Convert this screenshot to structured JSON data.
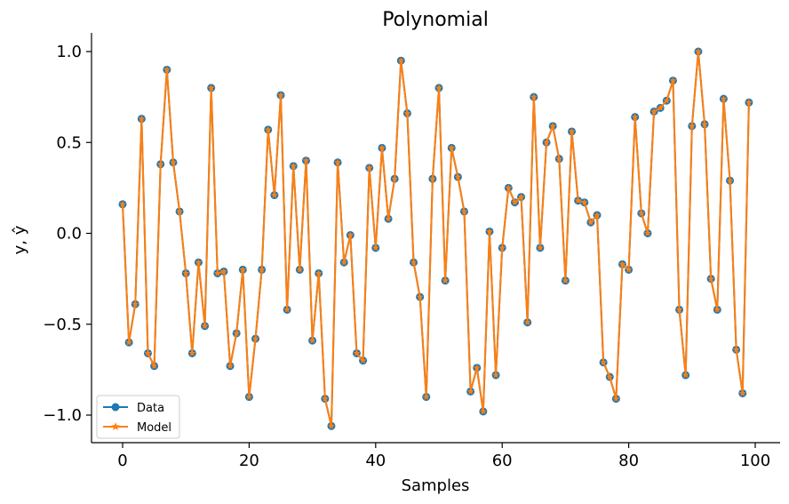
{
  "chart_data": {
    "type": "line",
    "title": "Polynomial",
    "xlabel": "Samples",
    "ylabel": "y, ŷ",
    "xlim": [
      -5,
      104
    ],
    "ylim": [
      -1.15,
      1.1
    ],
    "xticks": [
      0,
      20,
      40,
      60,
      80,
      100
    ],
    "xtick_labels": [
      "0",
      "20",
      "40",
      "60",
      "80",
      "100"
    ],
    "yticks": [
      1.0,
      0.5,
      0.0,
      -0.5,
      -1.0
    ],
    "ytick_labels": [
      "1.0",
      "0.5",
      "0.0",
      "−0.5",
      "−1.0"
    ],
    "grid": false,
    "legend_position": "lower-left",
    "x": [
      0,
      1,
      2,
      3,
      4,
      5,
      6,
      7,
      8,
      9,
      10,
      11,
      12,
      13,
      14,
      15,
      16,
      17,
      18,
      19,
      20,
      21,
      22,
      23,
      24,
      25,
      26,
      27,
      28,
      29,
      30,
      31,
      32,
      33,
      34,
      35,
      36,
      37,
      38,
      39,
      40,
      41,
      42,
      43,
      44,
      45,
      46,
      47,
      48,
      49,
      50,
      51,
      52,
      53,
      54,
      55,
      56,
      57,
      58,
      59,
      60,
      61,
      62,
      63,
      64,
      65,
      66,
      67,
      68,
      69,
      70,
      71,
      72,
      73,
      74,
      75,
      76,
      77,
      78,
      79,
      80,
      81,
      82,
      83,
      84,
      85,
      86,
      87,
      88,
      89,
      90,
      91,
      92,
      93,
      94,
      95,
      96,
      97,
      98,
      99
    ],
    "series": [
      {
        "name": "Data",
        "color": "#1f77b4",
        "marker": "circle",
        "values": [
          0.16,
          -0.6,
          -0.39,
          0.63,
          -0.66,
          -0.73,
          0.38,
          0.9,
          0.39,
          0.12,
          -0.22,
          -0.66,
          -0.16,
          -0.51,
          0.8,
          -0.22,
          -0.21,
          -0.73,
          -0.55,
          -0.2,
          -0.9,
          -0.58,
          -0.2,
          0.57,
          0.21,
          0.76,
          -0.42,
          0.37,
          -0.2,
          0.4,
          -0.59,
          -0.22,
          -0.91,
          -1.06,
          0.39,
          -0.16,
          -0.01,
          -0.66,
          -0.7,
          0.36,
          -0.08,
          0.47,
          0.08,
          0.3,
          0.95,
          0.66,
          -0.16,
          -0.35,
          -0.9,
          0.3,
          0.8,
          -0.26,
          0.47,
          0.31,
          0.12,
          -0.87,
          -0.74,
          -0.98,
          0.01,
          -0.78,
          -0.08,
          0.25,
          0.17,
          0.2,
          -0.49,
          0.75,
          -0.08,
          0.5,
          0.59,
          0.41,
          -0.26,
          0.56,
          0.18,
          0.17,
          0.06,
          0.1,
          -0.71,
          -0.79,
          -0.91,
          -0.17,
          -0.2,
          0.64,
          0.11,
          0.0,
          0.67,
          0.69,
          0.73,
          0.84,
          -0.42,
          -0.78,
          0.59,
          1.0,
          0.6,
          -0.25,
          -0.42,
          0.74,
          0.29,
          -0.64,
          -0.88,
          0.72
        ]
      },
      {
        "name": "Model",
        "color": "#ff7f0e",
        "marker": "star",
        "values": [
          0.16,
          -0.6,
          -0.39,
          0.63,
          -0.66,
          -0.73,
          0.38,
          0.9,
          0.39,
          0.12,
          -0.22,
          -0.66,
          -0.16,
          -0.51,
          0.8,
          -0.22,
          -0.21,
          -0.73,
          -0.55,
          -0.2,
          -0.9,
          -0.58,
          -0.2,
          0.57,
          0.21,
          0.76,
          -0.42,
          0.37,
          -0.2,
          0.4,
          -0.59,
          -0.22,
          -0.91,
          -1.06,
          0.39,
          -0.16,
          -0.01,
          -0.66,
          -0.7,
          0.36,
          -0.08,
          0.47,
          0.08,
          0.3,
          0.95,
          0.66,
          -0.16,
          -0.35,
          -0.9,
          0.3,
          0.8,
          -0.26,
          0.47,
          0.31,
          0.12,
          -0.87,
          -0.74,
          -0.98,
          0.01,
          -0.78,
          -0.08,
          0.25,
          0.17,
          0.2,
          -0.49,
          0.75,
          -0.08,
          0.5,
          0.59,
          0.41,
          -0.26,
          0.56,
          0.18,
          0.17,
          0.06,
          0.1,
          -0.71,
          -0.79,
          -0.91,
          -0.17,
          -0.2,
          0.64,
          0.11,
          0.0,
          0.67,
          0.69,
          0.73,
          0.84,
          -0.42,
          -0.78,
          0.59,
          1.0,
          0.6,
          -0.25,
          -0.42,
          0.74,
          0.29,
          -0.64,
          -0.88,
          0.72
        ]
      }
    ]
  }
}
